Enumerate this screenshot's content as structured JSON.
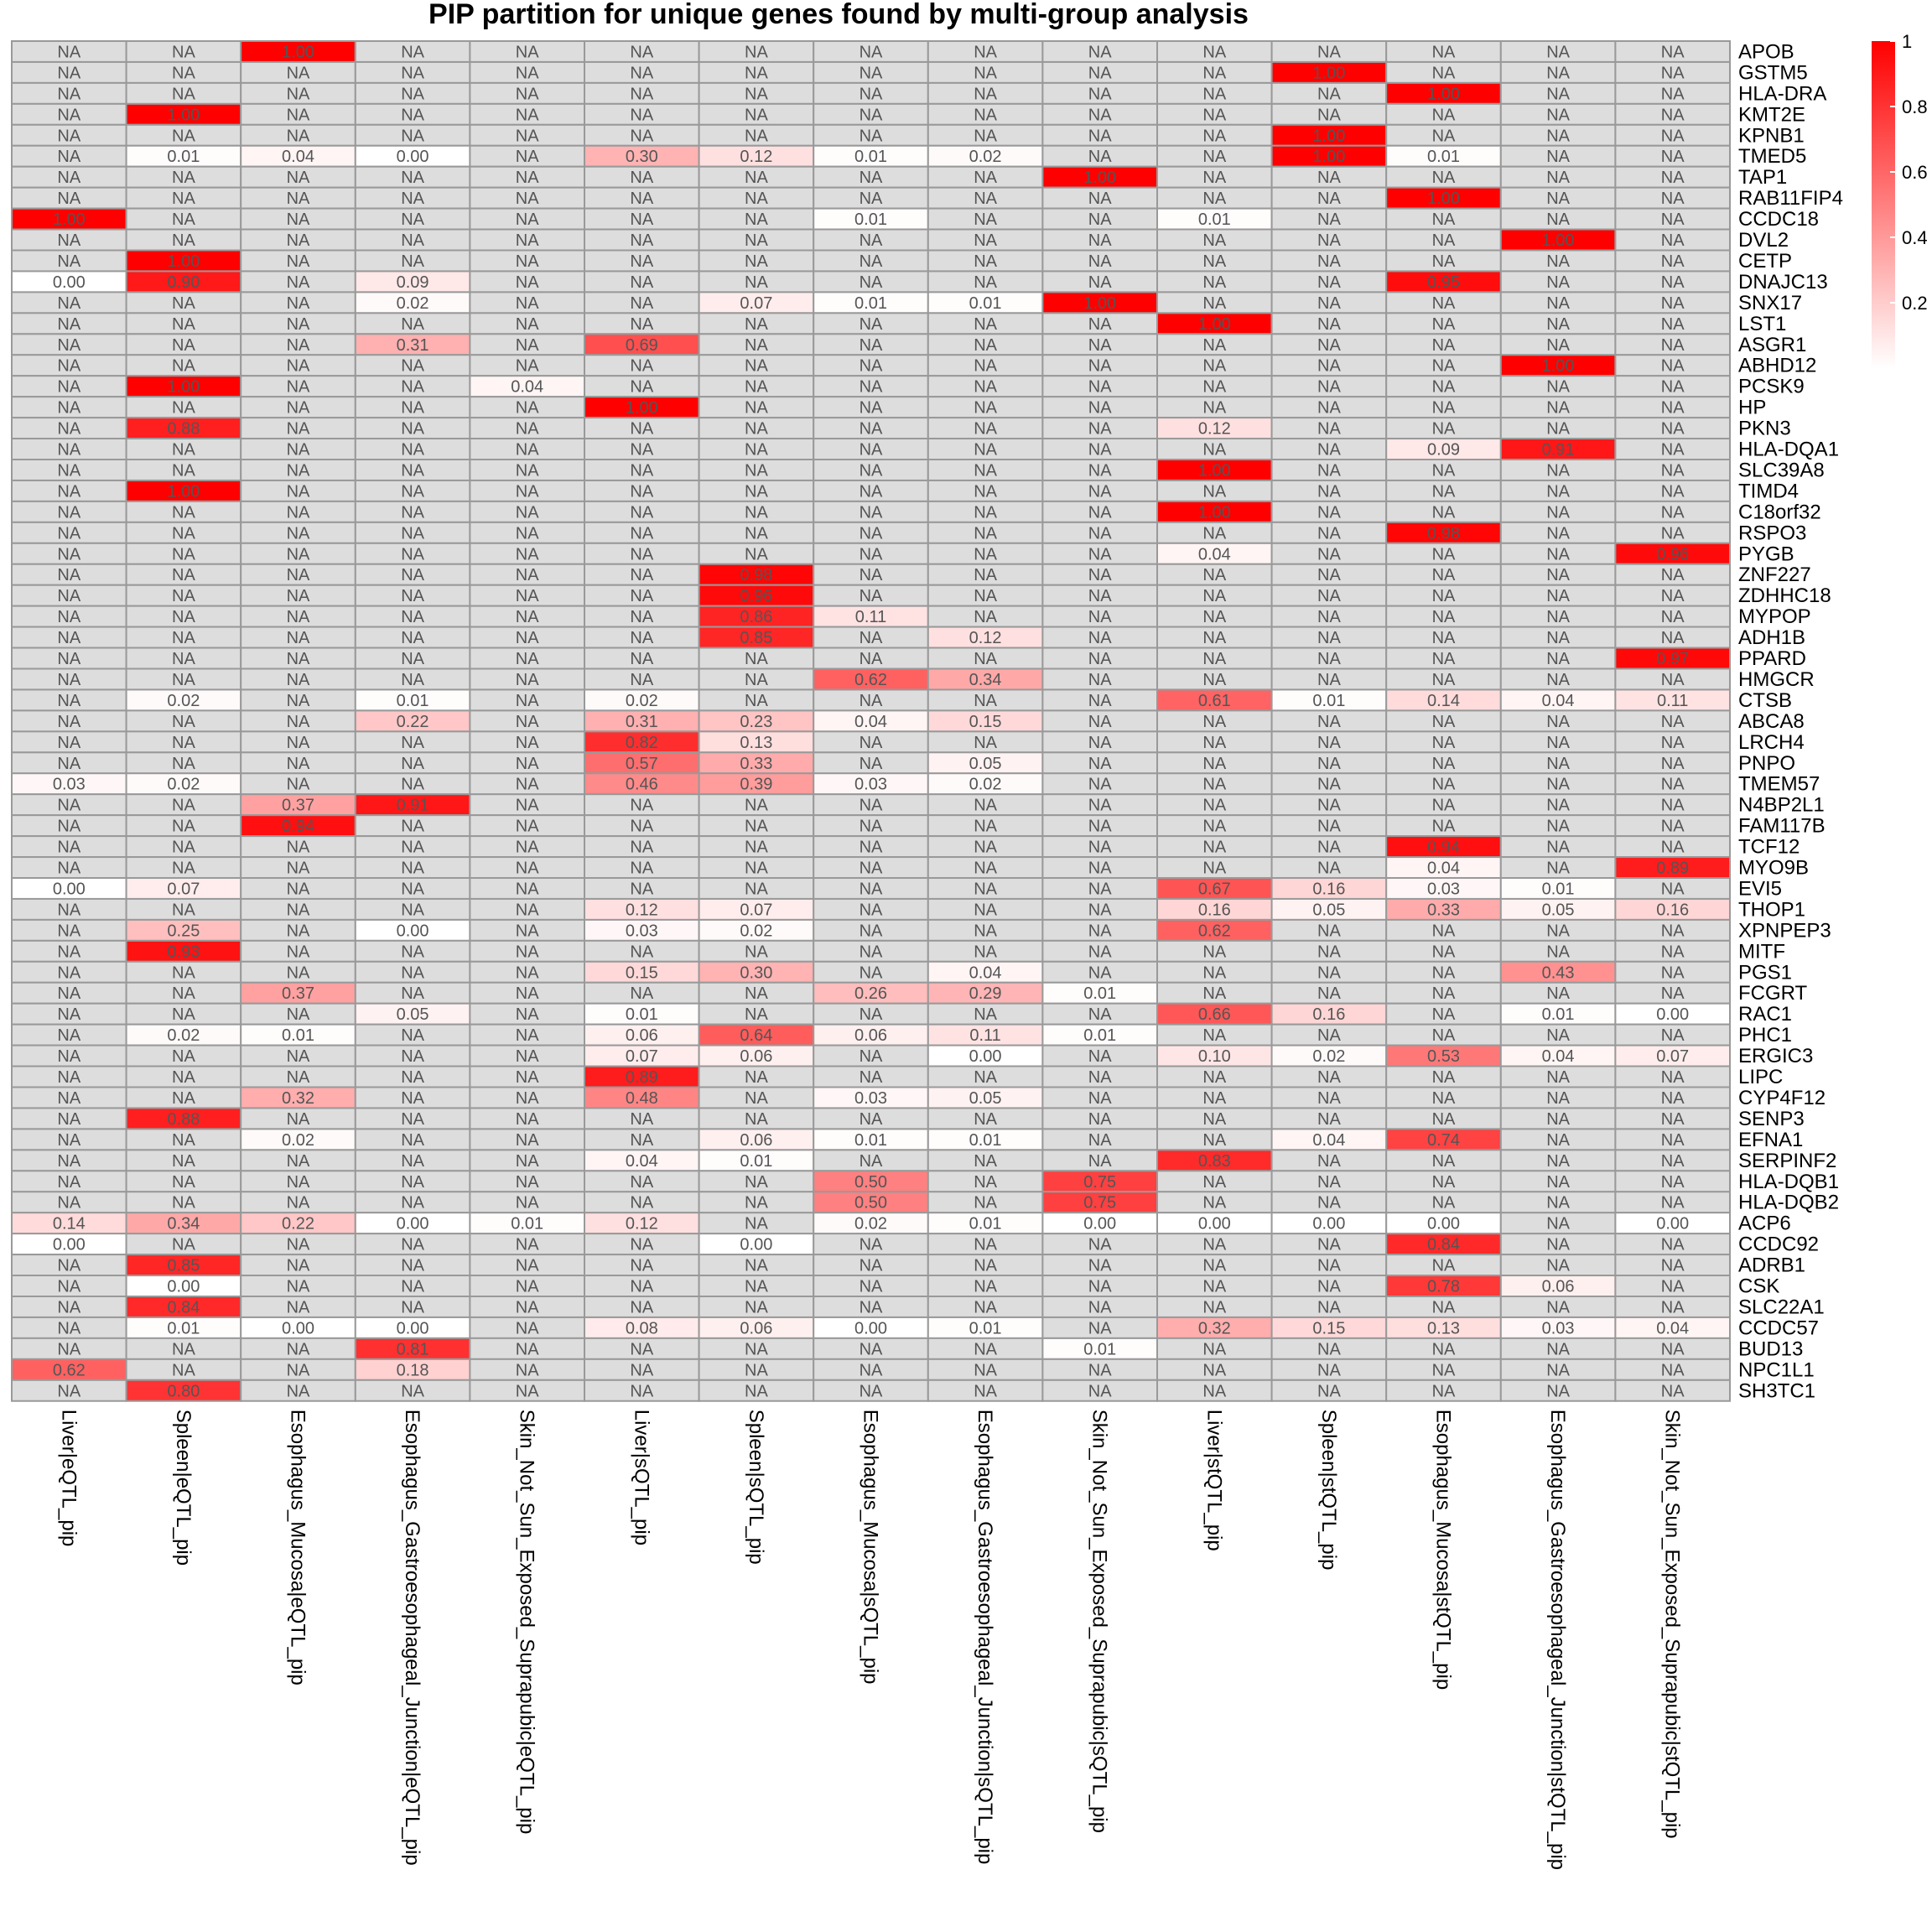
{
  "chart_data": {
    "type": "heatmap",
    "title": "PIP partition for unique genes found by multi-group analysis",
    "na_label": "NA",
    "colors": {
      "na": "#dddddd",
      "low": "#ffffff",
      "high": "#ff0000",
      "grid": "#999999"
    },
    "legend": {
      "ticks": [
        "0.2",
        "0.4",
        "0.6",
        "0.8",
        "1"
      ]
    },
    "columns": [
      "Liver|eQTL_pip",
      "Spleen|eQTL_pip",
      "Esophagus_Mucosa|eQTL_pip",
      "Esophagus_Gastroesophageal_Junction|eQTL_pip",
      "Skin_Not_Sun_Exposed_Suprapubic|eQTL_pip",
      "Liver|sQTL_pip",
      "Spleen|sQTL_pip",
      "Esophagus_Mucosa|sQTL_pip",
      "Esophagus_Gastroesophageal_Junction|sQTL_pip",
      "Skin_Not_Sun_Exposed_Suprapubic|sQTL_pip",
      "Liver|stQTL_pip",
      "Spleen|stQTL_pip",
      "Esophagus_Mucosa|stQTL_pip",
      "Esophagus_Gastroesophageal_Junction|stQTL_pip",
      "Skin_Not_Sun_Exposed_Suprapubic|stQTL_pip"
    ],
    "rows": [
      "APOB",
      "GSTM5",
      "HLA-DRA",
      "KMT2E",
      "KPNB1",
      "TMED5",
      "TAP1",
      "RAB11FIP4",
      "CCDC18",
      "DVL2",
      "CETP",
      "DNAJC13",
      "SNX17",
      "LST1",
      "ASGR1",
      "ABHD12",
      "PCSK9",
      "HP",
      "PKN3",
      "HLA-DQA1",
      "SLC39A8",
      "TIMD4",
      "C18orf32",
      "RSPO3",
      "PYGB",
      "ZNF227",
      "ZDHHC18",
      "MYPOP",
      "ADH1B",
      "PPARD",
      "HMGCR",
      "CTSB",
      "ABCA8",
      "LRCH4",
      "PNPO",
      "TMEM57",
      "N4BP2L1",
      "FAM117B",
      "TCF12",
      "MYO9B",
      "EVI5",
      "THOP1",
      "XPNPEP3",
      "MITF",
      "PGS1",
      "FCGRT",
      "RAC1",
      "PHC1",
      "ERGIC3",
      "LIPC",
      "CYP4F12",
      "SENP3",
      "EFNA1",
      "SERPINF2",
      "HLA-DQB1",
      "HLA-DQB2",
      "ACP6",
      "CCDC92",
      "ADRB1",
      "CSK",
      "SLC22A1",
      "CCDC57",
      "BUD13",
      "NPC1L1",
      "SH3TC1"
    ],
    "values": [
      [
        "NA",
        "NA",
        "1.00",
        "NA",
        "NA",
        "NA",
        "NA",
        "NA",
        "NA",
        "NA",
        "NA",
        "NA",
        "NA",
        "NA",
        "NA"
      ],
      [
        "NA",
        "NA",
        "NA",
        "NA",
        "NA",
        "NA",
        "NA",
        "NA",
        "NA",
        "NA",
        "NA",
        "1.00",
        "NA",
        "NA",
        "NA"
      ],
      [
        "NA",
        "NA",
        "NA",
        "NA",
        "NA",
        "NA",
        "NA",
        "NA",
        "NA",
        "NA",
        "NA",
        "NA",
        "1.00",
        "NA",
        "NA"
      ],
      [
        "NA",
        "1.00",
        "NA",
        "NA",
        "NA",
        "NA",
        "NA",
        "NA",
        "NA",
        "NA",
        "NA",
        "NA",
        "NA",
        "NA",
        "NA"
      ],
      [
        "NA",
        "NA",
        "NA",
        "NA",
        "NA",
        "NA",
        "NA",
        "NA",
        "NA",
        "NA",
        "NA",
        "1.00",
        "NA",
        "NA",
        "NA"
      ],
      [
        "NA",
        "0.01",
        "0.04",
        "0.00",
        "NA",
        "0.30",
        "0.12",
        "0.01",
        "0.02",
        "NA",
        "NA",
        "1.00",
        "0.01",
        "NA",
        "NA"
      ],
      [
        "NA",
        "NA",
        "NA",
        "NA",
        "NA",
        "NA",
        "NA",
        "NA",
        "NA",
        "1.00",
        "NA",
        "NA",
        "NA",
        "NA",
        "NA"
      ],
      [
        "NA",
        "NA",
        "NA",
        "NA",
        "NA",
        "NA",
        "NA",
        "NA",
        "NA",
        "NA",
        "NA",
        "NA",
        "1.00",
        "NA",
        "NA"
      ],
      [
        "1.00",
        "NA",
        "NA",
        "NA",
        "NA",
        "NA",
        "NA",
        "0.01",
        "NA",
        "NA",
        "0.01",
        "NA",
        "NA",
        "NA",
        "NA"
      ],
      [
        "NA",
        "NA",
        "NA",
        "NA",
        "NA",
        "NA",
        "NA",
        "NA",
        "NA",
        "NA",
        "NA",
        "NA",
        "NA",
        "1.00",
        "NA"
      ],
      [
        "NA",
        "1.00",
        "NA",
        "NA",
        "NA",
        "NA",
        "NA",
        "NA",
        "NA",
        "NA",
        "NA",
        "NA",
        "NA",
        "NA",
        "NA"
      ],
      [
        "0.00",
        "0.90",
        "NA",
        "0.09",
        "NA",
        "NA",
        "NA",
        "NA",
        "NA",
        "NA",
        "NA",
        "NA",
        "0.95",
        "NA",
        "NA"
      ],
      [
        "NA",
        "NA",
        "NA",
        "0.02",
        "NA",
        "NA",
        "0.07",
        "0.01",
        "0.01",
        "1.00",
        "NA",
        "NA",
        "NA",
        "NA",
        "NA"
      ],
      [
        "NA",
        "NA",
        "NA",
        "NA",
        "NA",
        "NA",
        "NA",
        "NA",
        "NA",
        "NA",
        "1.00",
        "NA",
        "NA",
        "NA",
        "NA"
      ],
      [
        "NA",
        "NA",
        "NA",
        "0.31",
        "NA",
        "0.69",
        "NA",
        "NA",
        "NA",
        "NA",
        "NA",
        "NA",
        "NA",
        "NA",
        "NA"
      ],
      [
        "NA",
        "NA",
        "NA",
        "NA",
        "NA",
        "NA",
        "NA",
        "NA",
        "NA",
        "NA",
        "NA",
        "NA",
        "NA",
        "1.00",
        "NA"
      ],
      [
        "NA",
        "1.00",
        "NA",
        "NA",
        "0.04",
        "NA",
        "NA",
        "NA",
        "NA",
        "NA",
        "NA",
        "NA",
        "NA",
        "NA",
        "NA"
      ],
      [
        "NA",
        "NA",
        "NA",
        "NA",
        "NA",
        "1.00",
        "NA",
        "NA",
        "NA",
        "NA",
        "NA",
        "NA",
        "NA",
        "NA",
        "NA"
      ],
      [
        "NA",
        "0.88",
        "NA",
        "NA",
        "NA",
        "NA",
        "NA",
        "NA",
        "NA",
        "NA",
        "0.12",
        "NA",
        "NA",
        "NA",
        "NA"
      ],
      [
        "NA",
        "NA",
        "NA",
        "NA",
        "NA",
        "NA",
        "NA",
        "NA",
        "NA",
        "NA",
        "NA",
        "NA",
        "0.09",
        "0.91",
        "NA"
      ],
      [
        "NA",
        "NA",
        "NA",
        "NA",
        "NA",
        "NA",
        "NA",
        "NA",
        "NA",
        "NA",
        "1.00",
        "NA",
        "NA",
        "NA",
        "NA"
      ],
      [
        "NA",
        "1.00",
        "NA",
        "NA",
        "NA",
        "NA",
        "NA",
        "NA",
        "NA",
        "NA",
        "NA",
        "NA",
        "NA",
        "NA",
        "NA"
      ],
      [
        "NA",
        "NA",
        "NA",
        "NA",
        "NA",
        "NA",
        "NA",
        "NA",
        "NA",
        "NA",
        "1.00",
        "NA",
        "NA",
        "NA",
        "NA"
      ],
      [
        "NA",
        "NA",
        "NA",
        "NA",
        "NA",
        "NA",
        "NA",
        "NA",
        "NA",
        "NA",
        "NA",
        "NA",
        "0.98",
        "NA",
        "NA"
      ],
      [
        "NA",
        "NA",
        "NA",
        "NA",
        "NA",
        "NA",
        "NA",
        "NA",
        "NA",
        "NA",
        "0.04",
        "NA",
        "NA",
        "NA",
        "0.96"
      ],
      [
        "NA",
        "NA",
        "NA",
        "NA",
        "NA",
        "NA",
        "0.98",
        "NA",
        "NA",
        "NA",
        "NA",
        "NA",
        "NA",
        "NA",
        "NA"
      ],
      [
        "NA",
        "NA",
        "NA",
        "NA",
        "NA",
        "NA",
        "0.96",
        "NA",
        "NA",
        "NA",
        "NA",
        "NA",
        "NA",
        "NA",
        "NA"
      ],
      [
        "NA",
        "NA",
        "NA",
        "NA",
        "NA",
        "NA",
        "0.86",
        "0.11",
        "NA",
        "NA",
        "NA",
        "NA",
        "NA",
        "NA",
        "NA"
      ],
      [
        "NA",
        "NA",
        "NA",
        "NA",
        "NA",
        "NA",
        "0.85",
        "NA",
        "0.12",
        "NA",
        "NA",
        "NA",
        "NA",
        "NA",
        "NA"
      ],
      [
        "NA",
        "NA",
        "NA",
        "NA",
        "NA",
        "NA",
        "NA",
        "NA",
        "NA",
        "NA",
        "NA",
        "NA",
        "NA",
        "NA",
        "0.97"
      ],
      [
        "NA",
        "NA",
        "NA",
        "NA",
        "NA",
        "NA",
        "NA",
        "0.62",
        "0.34",
        "NA",
        "NA",
        "NA",
        "NA",
        "NA",
        "NA"
      ],
      [
        "NA",
        "0.02",
        "NA",
        "0.01",
        "NA",
        "0.02",
        "NA",
        "NA",
        "NA",
        "NA",
        "0.61",
        "0.01",
        "0.14",
        "0.04",
        "0.11"
      ],
      [
        "NA",
        "NA",
        "NA",
        "0.22",
        "NA",
        "0.31",
        "0.23",
        "0.04",
        "0.15",
        "NA",
        "NA",
        "NA",
        "NA",
        "NA",
        "NA"
      ],
      [
        "NA",
        "NA",
        "NA",
        "NA",
        "NA",
        "0.82",
        "0.13",
        "NA",
        "NA",
        "NA",
        "NA",
        "NA",
        "NA",
        "NA",
        "NA"
      ],
      [
        "NA",
        "NA",
        "NA",
        "NA",
        "NA",
        "0.57",
        "0.33",
        "NA",
        "0.05",
        "NA",
        "NA",
        "NA",
        "NA",
        "NA",
        "NA"
      ],
      [
        "0.03",
        "0.02",
        "NA",
        "NA",
        "NA",
        "0.46",
        "0.39",
        "0.03",
        "0.02",
        "NA",
        "NA",
        "NA",
        "NA",
        "NA",
        "NA"
      ],
      [
        "NA",
        "NA",
        "0.37",
        "0.91",
        "NA",
        "NA",
        "NA",
        "NA",
        "NA",
        "NA",
        "NA",
        "NA",
        "NA",
        "NA",
        "NA"
      ],
      [
        "NA",
        "NA",
        "0.94",
        "NA",
        "NA",
        "NA",
        "NA",
        "NA",
        "NA",
        "NA",
        "NA",
        "NA",
        "NA",
        "NA",
        "NA"
      ],
      [
        "NA",
        "NA",
        "NA",
        "NA",
        "NA",
        "NA",
        "NA",
        "NA",
        "NA",
        "NA",
        "NA",
        "NA",
        "0.94",
        "NA",
        "NA"
      ],
      [
        "NA",
        "NA",
        "NA",
        "NA",
        "NA",
        "NA",
        "NA",
        "NA",
        "NA",
        "NA",
        "NA",
        "NA",
        "0.04",
        "NA",
        "0.89"
      ],
      [
        "0.00",
        "0.07",
        "NA",
        "NA",
        "NA",
        "NA",
        "NA",
        "NA",
        "NA",
        "NA",
        "0.67",
        "0.16",
        "0.03",
        "0.01",
        "NA"
      ],
      [
        "NA",
        "NA",
        "NA",
        "NA",
        "NA",
        "0.12",
        "0.07",
        "NA",
        "NA",
        "NA",
        "0.16",
        "0.05",
        "0.33",
        "0.05",
        "0.16"
      ],
      [
        "NA",
        "0.25",
        "NA",
        "0.00",
        "NA",
        "0.03",
        "0.02",
        "NA",
        "NA",
        "NA",
        "0.62",
        "NA",
        "NA",
        "NA",
        "NA"
      ],
      [
        "NA",
        "0.93",
        "NA",
        "NA",
        "NA",
        "NA",
        "NA",
        "NA",
        "NA",
        "NA",
        "NA",
        "NA",
        "NA",
        "NA",
        "NA"
      ],
      [
        "NA",
        "NA",
        "NA",
        "NA",
        "NA",
        "0.15",
        "0.30",
        "NA",
        "0.04",
        "NA",
        "NA",
        "NA",
        "NA",
        "0.43",
        "NA"
      ],
      [
        "NA",
        "NA",
        "0.37",
        "NA",
        "NA",
        "NA",
        "NA",
        "0.26",
        "0.29",
        "0.01",
        "NA",
        "NA",
        "NA",
        "NA",
        "NA"
      ],
      [
        "NA",
        "NA",
        "NA",
        "0.05",
        "NA",
        "0.01",
        "NA",
        "NA",
        "NA",
        "NA",
        "0.66",
        "0.16",
        "NA",
        "0.01",
        "0.00"
      ],
      [
        "NA",
        "0.02",
        "0.01",
        "NA",
        "NA",
        "0.06",
        "0.64",
        "0.06",
        "0.11",
        "0.01",
        "NA",
        "NA",
        "NA",
        "NA",
        "NA"
      ],
      [
        "NA",
        "NA",
        "NA",
        "NA",
        "NA",
        "0.07",
        "0.06",
        "NA",
        "0.00",
        "NA",
        "0.10",
        "0.02",
        "0.53",
        "0.04",
        "0.07"
      ],
      [
        "NA",
        "NA",
        "NA",
        "NA",
        "NA",
        "0.89",
        "NA",
        "NA",
        "NA",
        "NA",
        "NA",
        "NA",
        "NA",
        "NA",
        "NA"
      ],
      [
        "NA",
        "NA",
        "0.32",
        "NA",
        "NA",
        "0.48",
        "NA",
        "0.03",
        "0.05",
        "NA",
        "NA",
        "NA",
        "NA",
        "NA",
        "NA"
      ],
      [
        "NA",
        "0.88",
        "NA",
        "NA",
        "NA",
        "NA",
        "NA",
        "NA",
        "NA",
        "NA",
        "NA",
        "NA",
        "NA",
        "NA",
        "NA"
      ],
      [
        "NA",
        "NA",
        "0.02",
        "NA",
        "NA",
        "NA",
        "0.06",
        "0.01",
        "0.01",
        "NA",
        "NA",
        "0.04",
        "0.74",
        "NA",
        "NA"
      ],
      [
        "NA",
        "NA",
        "NA",
        "NA",
        "NA",
        "0.04",
        "0.01",
        "NA",
        "NA",
        "NA",
        "0.83",
        "NA",
        "NA",
        "NA",
        "NA"
      ],
      [
        "NA",
        "NA",
        "NA",
        "NA",
        "NA",
        "NA",
        "NA",
        "0.50",
        "NA",
        "0.75",
        "NA",
        "NA",
        "NA",
        "NA",
        "NA"
      ],
      [
        "NA",
        "NA",
        "NA",
        "NA",
        "NA",
        "NA",
        "NA",
        "0.50",
        "NA",
        "0.75",
        "NA",
        "NA",
        "NA",
        "NA",
        "NA"
      ],
      [
        "0.14",
        "0.34",
        "0.22",
        "0.00",
        "0.01",
        "0.12",
        "NA",
        "0.02",
        "0.01",
        "0.00",
        "0.00",
        "0.00",
        "0.00",
        "NA",
        "0.00"
      ],
      [
        "0.00",
        "NA",
        "NA",
        "NA",
        "NA",
        "NA",
        "0.00",
        "NA",
        "NA",
        "NA",
        "NA",
        "NA",
        "0.84",
        "NA",
        "NA"
      ],
      [
        "NA",
        "0.85",
        "NA",
        "NA",
        "NA",
        "NA",
        "NA",
        "NA",
        "NA",
        "NA",
        "NA",
        "NA",
        "NA",
        "NA",
        "NA"
      ],
      [
        "NA",
        "0.00",
        "NA",
        "NA",
        "NA",
        "NA",
        "NA",
        "NA",
        "NA",
        "NA",
        "NA",
        "NA",
        "0.78",
        "0.06",
        "NA"
      ],
      [
        "NA",
        "0.84",
        "NA",
        "NA",
        "NA",
        "NA",
        "NA",
        "NA",
        "NA",
        "NA",
        "NA",
        "NA",
        "NA",
        "NA",
        "NA"
      ],
      [
        "NA",
        "0.01",
        "0.00",
        "0.00",
        "NA",
        "0.08",
        "0.06",
        "0.00",
        "0.01",
        "NA",
        "0.32",
        "0.15",
        "0.13",
        "0.03",
        "0.04"
      ],
      [
        "NA",
        "NA",
        "NA",
        "0.81",
        "NA",
        "NA",
        "NA",
        "NA",
        "NA",
        "0.01",
        "NA",
        "NA",
        "NA",
        "NA",
        "NA"
      ],
      [
        "0.62",
        "NA",
        "NA",
        "0.18",
        "NA",
        "NA",
        "NA",
        "NA",
        "NA",
        "NA",
        "NA",
        "NA",
        "NA",
        "NA",
        "NA"
      ],
      [
        "NA",
        "0.80",
        "NA",
        "NA",
        "NA",
        "NA",
        "NA",
        "NA",
        "NA",
        "NA",
        "NA",
        "NA",
        "NA",
        "NA",
        "NA"
      ]
    ]
  }
}
